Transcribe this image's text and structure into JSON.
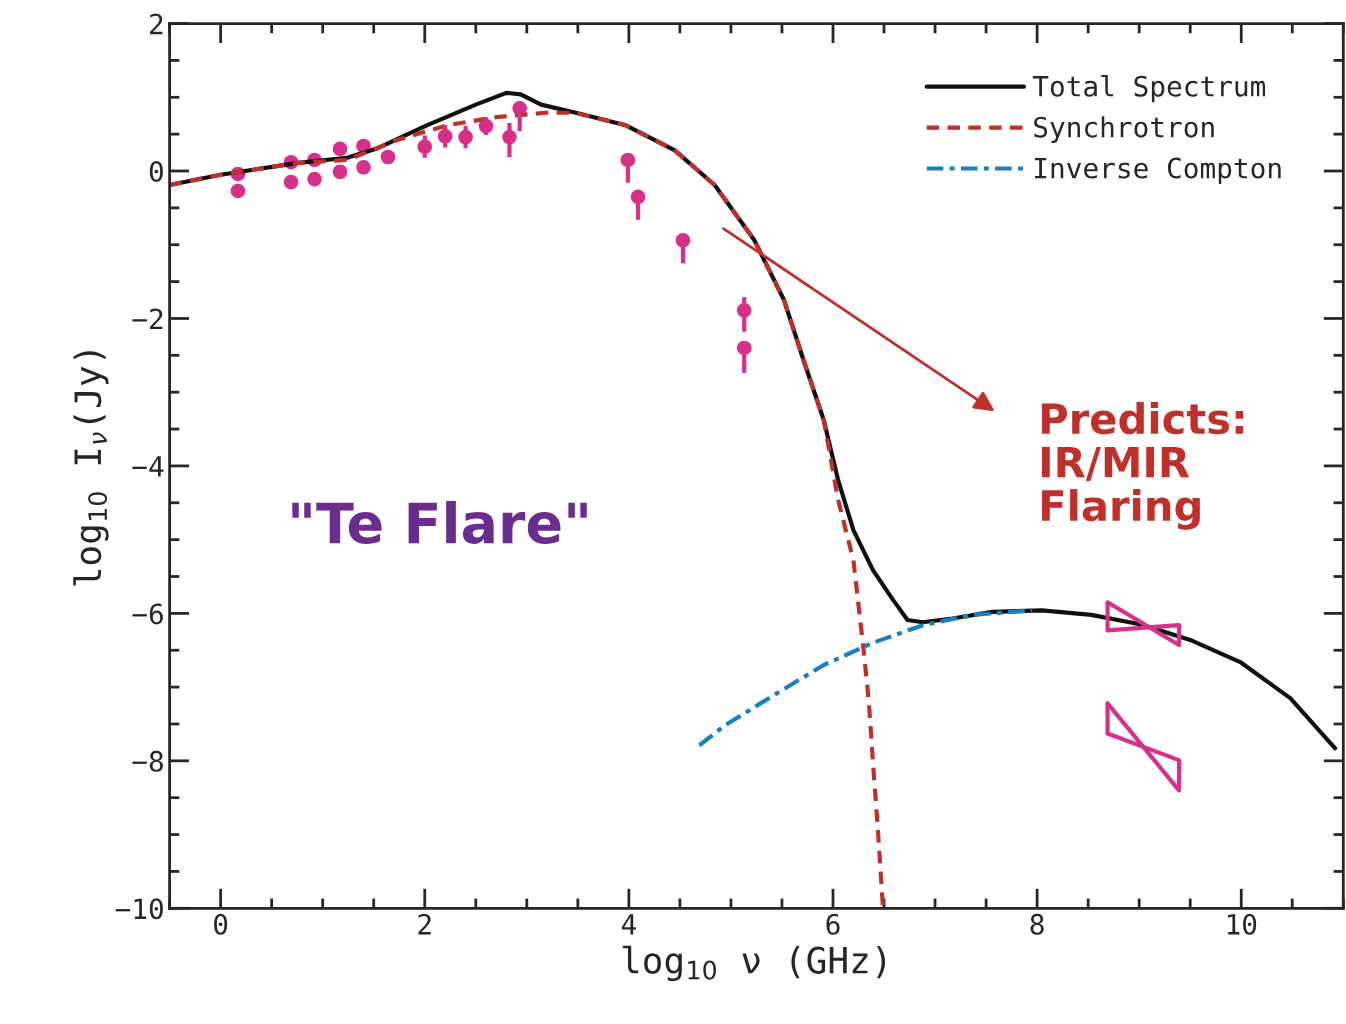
{
  "chart_data": {
    "type": "line",
    "xlabel": "log$_{10}$ ν (GHz)",
    "ylabel": "log$_{10}$ I$_{ν}$(Jy)",
    "xlim": [
      -0.5,
      11
    ],
    "ylim": [
      -10,
      2
    ],
    "xticks": [
      0,
      2,
      4,
      6,
      8,
      10
    ],
    "yticks": [
      -10,
      -8,
      -6,
      -4,
      -2,
      0,
      2
    ],
    "grid": false,
    "legend": "top right",
    "annotations": [
      "\"Te Flare\"",
      "Predicts:\nIR/MIR\nFlaring"
    ],
    "series": [
      {
        "name": "Total Spectrum",
        "color": "#111111",
        "line_style": "solid",
        "x": [
          -0.5,
          0,
          0.76,
          1.24,
          1.54,
          2.02,
          2.5,
          2.8,
          2.94,
          3.14,
          3.48,
          3.97,
          4.45,
          4.84,
          5.23,
          5.52,
          5.71,
          5.91,
          6.05,
          6.2,
          6.39,
          6.59,
          6.73,
          6.88,
          7.17,
          7.56,
          8.05,
          8.53,
          9.02,
          9.5,
          9.99,
          10.48,
          10.92
        ],
        "values": [
          -0.19,
          -0.05,
          0.11,
          0.18,
          0.31,
          0.62,
          0.9,
          1.06,
          1.04,
          0.9,
          0.79,
          0.62,
          0.28,
          -0.19,
          -0.94,
          -1.75,
          -2.56,
          -3.38,
          -4.19,
          -4.87,
          -5.41,
          -5.82,
          -6.09,
          -6.12,
          -6.07,
          -5.98,
          -5.96,
          -6.02,
          -6.15,
          -6.36,
          -6.66,
          -7.15,
          -7.83
        ]
      },
      {
        "name": "Synchrotron",
        "color": "#c0302a",
        "line_style": "dashed",
        "x": [
          -0.5,
          0,
          0.76,
          1.24,
          1.73,
          2.22,
          2.7,
          3.19,
          3.48,
          3.97,
          4.45,
          4.84,
          5.23,
          5.52,
          5.71,
          5.91,
          6.05,
          6.2,
          6.3,
          6.35,
          6.39,
          6.44,
          6.49
        ],
        "values": [
          -0.19,
          -0.05,
          0.11,
          0.15,
          0.42,
          0.62,
          0.73,
          0.79,
          0.79,
          0.62,
          0.28,
          -0.19,
          -0.94,
          -1.75,
          -2.56,
          -3.38,
          -4.46,
          -5.28,
          -6.5,
          -7.18,
          -7.99,
          -8.94,
          -10.0
        ]
      },
      {
        "name": "Inverse Compton",
        "color": "#1a7fc0",
        "line_style": "dotted",
        "x": [
          4.69,
          4.94,
          5.42,
          5.91,
          6.39,
          6.88,
          7.37,
          7.95
        ],
        "values": [
          -7.79,
          -7.52,
          -7.11,
          -6.7,
          -6.4,
          -6.16,
          -6.02,
          -5.96
        ]
      },
      {
        "type": "scatter",
        "color": "#d6308a",
        "marker": "circle",
        "x": [
          0.17,
          0.17,
          0.69,
          0.69,
          0.92,
          0.92,
          1.17,
          1.17,
          1.4,
          1.4,
          1.64,
          2.0,
          2.2,
          2.4,
          2.6,
          2.83,
          2.93,
          3.99,
          4.09,
          4.53,
          5.13,
          5.13
        ],
        "values": [
          -0.04,
          -0.27,
          0.12,
          -0.15,
          0.15,
          -0.11,
          0.3,
          -0.01,
          0.34,
          0.05,
          0.19,
          0.33,
          0.47,
          0.46,
          0.61,
          0.46,
          0.85,
          0.15,
          -0.35,
          -0.94,
          -1.89,
          -2.4
        ],
        "errors": [
          null,
          null,
          null,
          null,
          null,
          null,
          null,
          null,
          null,
          null,
          null,
          0.15,
          0.15,
          0.15,
          0.12,
          [
            0.19,
            0.65
          ],
          [
            0.54,
            0.95
          ],
          [
            -0.16,
            0.15
          ],
          [
            -0.66,
            -0.35
          ],
          [
            -1.25,
            -0.94
          ],
          [
            -2.18,
            -1.71
          ],
          [
            -2.74,
            -2.4
          ]
        ]
      },
      {
        "color": "#d6308a",
        "line_style": "solid",
        "x": [
          8.69,
          9.39
        ],
        "values": [
          -5.85,
          -6.43
        ],
        "errors": [
          [
            -6.23,
            -5.85
          ],
          [
            -6.43,
            -6.16
          ]
        ]
      },
      {
        "color": "#d6308a",
        "line_style": "solid",
        "x": [
          8.69,
          9.39
        ],
        "values": [
          -6.23,
          -6.16
        ]
      },
      {
        "color": "#d6308a",
        "line_style": "solid",
        "x": [
          8.69,
          9.39
        ],
        "values": [
          -7.22,
          -8.4
        ],
        "errors": [
          [
            -7.63,
            -7.22
          ],
          [
            -8.4,
            -7.99
          ]
        ]
      },
      {
        "color": "#d6308a",
        "line_style": "solid",
        "x": [
          8.69,
          9.39
        ],
        "values": [
          -7.63,
          -7.99
        ]
      }
    ]
  }
}
